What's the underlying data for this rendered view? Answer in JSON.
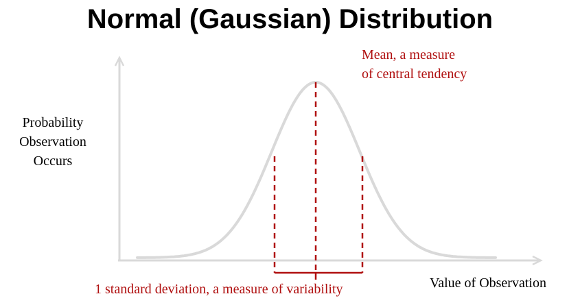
{
  "title": "Normal (Gaussian) Distribution",
  "y_axis_label": [
    "Probability",
    "Observation",
    "Occurs"
  ],
  "x_axis_label": "Value of Observation",
  "annotations": {
    "mean": [
      "Mean, a measure",
      "of central tendency"
    ],
    "std_dev": "1 standard deviation, a measure of variability"
  },
  "colors": {
    "curve": "#d9d9d9",
    "axes": "#d9d9d9",
    "annotation": "#b01010",
    "text": "#000000"
  }
}
